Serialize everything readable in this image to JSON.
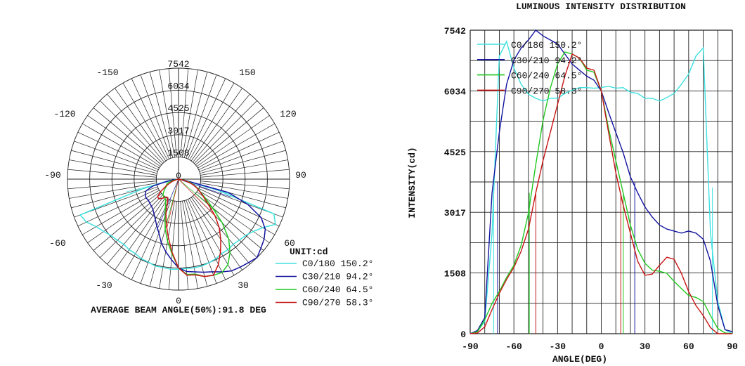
{
  "chart_data": [
    {
      "type": "polar",
      "ring_labels": [
        "0",
        "1508",
        "3017",
        "4525",
        "6034",
        "7542"
      ],
      "rmax": 7542,
      "angle_labels": [
        "-150",
        "150",
        "-120",
        "120",
        "-90",
        "90",
        "-60",
        "60",
        "-30",
        "30",
        "0"
      ],
      "unit_label": "UNIT:cd",
      "footer": "AVERAGE BEAM ANGLE(50%):91.8 DEG",
      "legend": [
        "C0/180 150.2°",
        "C30/210 94.2°",
        "C60/240 64.5°",
        "C90/270 58.3°"
      ]
    },
    {
      "type": "line",
      "title": "LUMINOUS INTENSITY DISTRIBUTION",
      "xlabel": "ANGLE(DEG)",
      "ylabel": "INTENSITY(cd)",
      "xlim": [
        -90,
        90
      ],
      "ylim": [
        0,
        7542
      ],
      "xticks": [
        "-90",
        "-60",
        "-30",
        "0",
        "30",
        "60",
        "90"
      ],
      "yticks": [
        "0",
        "1508",
        "3017",
        "4525",
        "6034",
        "7542"
      ],
      "grid": true,
      "legend_position": "top-left",
      "x": [
        -90,
        -85,
        -80,
        -75,
        -70,
        -65,
        -60,
        -55,
        -50,
        -45,
        -40,
        -35,
        -30,
        -25,
        -20,
        -15,
        -10,
        -5,
        0,
        5,
        10,
        15,
        20,
        25,
        30,
        35,
        40,
        45,
        50,
        55,
        60,
        65,
        70,
        75,
        80,
        85,
        90
      ],
      "series": [
        {
          "name": "C0/180 150.2°",
          "color": "#3ee0e0",
          "beam_edges": [
            -73.9,
            76.3
          ],
          "values": [
            0,
            60,
            300,
            2500,
            6900,
            7262,
            6600,
            6200,
            5950,
            5850,
            5780,
            5850,
            5850,
            5970,
            6050,
            6115,
            6115,
            6100,
            6115,
            6150,
            6100,
            6115,
            6000,
            5970,
            5850,
            5850,
            5780,
            5870,
            5970,
            6200,
            6450,
            6900,
            7100,
            2500,
            800,
            100,
            0
          ]
        },
        {
          "name": "C30/210 94.2°",
          "color": "#1414a0",
          "beam_edges": [
            -71.2,
            23.0
          ],
          "values": [
            0,
            80,
            400,
            3500,
            5000,
            6200,
            6800,
            7100,
            7300,
            7542,
            7400,
            7300,
            7200,
            6950,
            6700,
            6550,
            6400,
            6300,
            6034,
            5500,
            5000,
            4500,
            3900,
            3500,
            3150,
            2900,
            2700,
            2600,
            2550,
            2500,
            2550,
            2500,
            2350,
            1800,
            700,
            100,
            50
          ]
        },
        {
          "name": "C60/240 64.5°",
          "color": "#22c822",
          "beam_edges": [
            -49.4,
            15.1
          ],
          "values": [
            0,
            50,
            350,
            750,
            1050,
            1400,
            1700,
            2200,
            3000,
            4200,
            5300,
            6100,
            6700,
            7000,
            6950,
            6850,
            6550,
            6500,
            6034,
            5100,
            4300,
            3500,
            2700,
            2100,
            1750,
            1580,
            1550,
            1500,
            1300,
            1120,
            950,
            900,
            800,
            450,
            130,
            20,
            0
          ]
        },
        {
          "name": "C90/270 58.3°",
          "color": "#c81414",
          "beam_edges": [
            -44.9,
            13.4
          ],
          "values": [
            0,
            20,
            170,
            600,
            1000,
            1350,
            1650,
            2050,
            2600,
            3500,
            4300,
            5000,
            5700,
            6400,
            6950,
            6850,
            6600,
            6550,
            6034,
            5000,
            4000,
            3200,
            2500,
            1800,
            1450,
            1480,
            1700,
            1900,
            1850,
            1500,
            1050,
            700,
            450,
            150,
            0,
            0,
            0
          ]
        }
      ]
    }
  ]
}
